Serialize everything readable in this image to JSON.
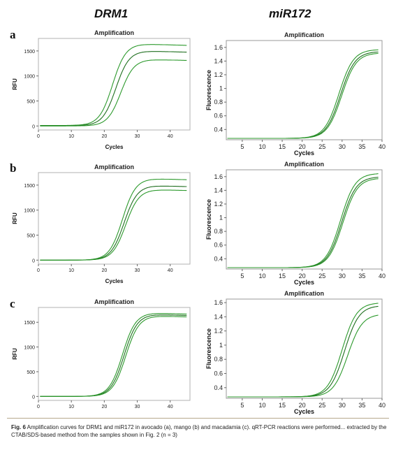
{
  "figure": {
    "column_titles": [
      "DRM1",
      "miR172"
    ],
    "row_letters": [
      "a",
      "b",
      "c"
    ],
    "caption": {
      "fig_label": "Fig. 6",
      "text": "Amplification curves for DRM1 and miR172 in avocado (a), mango (b) and macadamia (c). qRT-PCR reactions were performed... extracted by the CTAB/SDS-based method from the samples shown in Fig. 2 (n = 3)"
    },
    "colors": {
      "curve": "#2d9a2d",
      "curve_dark": "#1e6e1e",
      "frame": "#888888"
    }
  },
  "chart_data": [
    {
      "panel": "a-DRM1",
      "type": "line",
      "title": "Amplification",
      "xlabel": "Cycles",
      "ylabel": "RFU",
      "xlim": [
        0,
        46
      ],
      "ylim": [
        -80,
        1750
      ],
      "xticks": [
        0,
        10,
        20,
        30,
        40
      ],
      "yticks": [
        0,
        500,
        1000,
        1500
      ],
      "series": [
        {
          "Ct": 22.5,
          "baseline": 10,
          "plateau": 1640
        },
        {
          "Ct": 23.5,
          "baseline": 5,
          "plateau": 1500
        },
        {
          "Ct": 25.0,
          "baseline": 0,
          "plateau": 1330
        }
      ]
    },
    {
      "panel": "a-miR172",
      "type": "line",
      "title": "Amplification",
      "xlabel": "Cycles",
      "ylabel": "Fluorescence",
      "xlim": [
        1,
        40
      ],
      "ylim": [
        0.25,
        1.7
      ],
      "xticks": [
        5,
        10,
        15,
        20,
        25,
        30,
        35,
        40
      ],
      "yticks": [
        0.4,
        0.6,
        0.8,
        1,
        1.2,
        1.4,
        1.6
      ],
      "series": [
        {
          "Ct": 29.2,
          "baseline": 0.27,
          "plateau": 1.57
        },
        {
          "Ct": 29.6,
          "baseline": 0.27,
          "plateau": 1.54
        },
        {
          "Ct": 29.9,
          "baseline": 0.27,
          "plateau": 1.52
        }
      ]
    },
    {
      "panel": "b-DRM1",
      "type": "line",
      "title": "Amplification",
      "xlabel": "Cycles",
      "ylabel": "RFU",
      "xlim": [
        0,
        46
      ],
      "ylim": [
        -80,
        1750
      ],
      "xticks": [
        0,
        10,
        20,
        30,
        40
      ],
      "yticks": [
        0,
        500,
        1000,
        1500
      ],
      "series": [
        {
          "Ct": 25.5,
          "baseline": 0,
          "plateau": 1630
        },
        {
          "Ct": 26.0,
          "baseline": 0,
          "plateau": 1490
        },
        {
          "Ct": 26.5,
          "baseline": 0,
          "plateau": 1410
        }
      ]
    },
    {
      "panel": "b-miR172",
      "type": "line",
      "title": "Amplification",
      "xlabel": "Cycles",
      "ylabel": "Fluorescence",
      "xlim": [
        1,
        40
      ],
      "ylim": [
        0.25,
        1.7
      ],
      "xticks": [
        5,
        10,
        15,
        20,
        25,
        30,
        35,
        40
      ],
      "yticks": [
        0.4,
        0.6,
        0.8,
        1,
        1.2,
        1.4,
        1.6
      ],
      "series": [
        {
          "Ct": 29.6,
          "baseline": 0.27,
          "plateau": 1.65
        },
        {
          "Ct": 29.9,
          "baseline": 0.27,
          "plateau": 1.6
        },
        {
          "Ct": 30.2,
          "baseline": 0.27,
          "plateau": 1.58
        }
      ]
    },
    {
      "panel": "c-DRM1",
      "type": "line",
      "title": "Amplification",
      "xlabel": "Cycles",
      "ylabel": "RFU",
      "xlim": [
        0,
        46
      ],
      "ylim": [
        -80,
        1800
      ],
      "xticks": [
        0,
        10,
        20,
        30,
        40
      ],
      "yticks": [
        0,
        500,
        1000,
        1500
      ],
      "series": [
        {
          "Ct": 25.5,
          "baseline": 0,
          "plateau": 1690
        },
        {
          "Ct": 26.0,
          "baseline": 0,
          "plateau": 1660
        },
        {
          "Ct": 26.5,
          "baseline": 0,
          "plateau": 1630
        }
      ]
    },
    {
      "panel": "c-miR172",
      "type": "line",
      "title": "Amplification",
      "xlabel": "Cycles",
      "ylabel": "Fluorescence",
      "xlim": [
        1,
        40
      ],
      "ylim": [
        0.25,
        1.65
      ],
      "xticks": [
        5,
        10,
        15,
        20,
        25,
        30,
        35,
        40
      ],
      "yticks": [
        0.4,
        0.6,
        0.8,
        1,
        1.2,
        1.4,
        1.6
      ],
      "series": [
        {
          "Ct": 30.0,
          "baseline": 0.27,
          "plateau": 1.6
        },
        {
          "Ct": 30.6,
          "baseline": 0.27,
          "plateau": 1.56
        },
        {
          "Ct": 31.4,
          "baseline": 0.27,
          "plateau": 1.44
        }
      ]
    }
  ]
}
